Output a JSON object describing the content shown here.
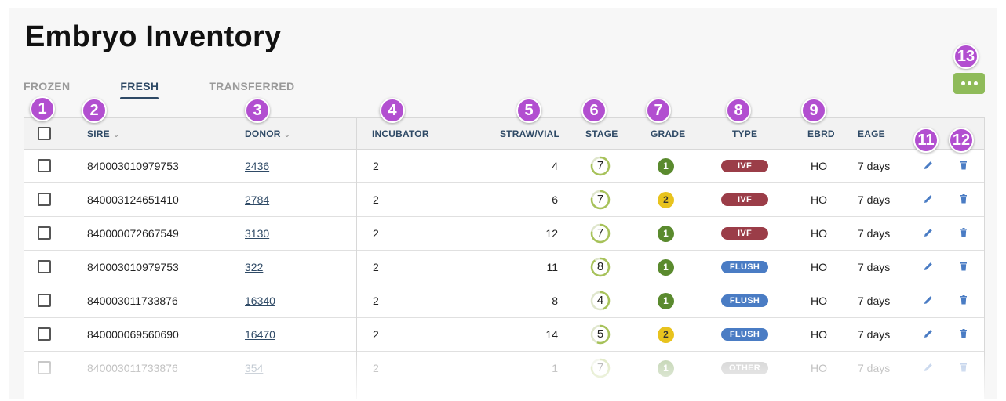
{
  "page": {
    "title": "Embryo Inventory"
  },
  "tabs": [
    {
      "label": "FROZEN",
      "active": false
    },
    {
      "label": "FRESH",
      "active": true
    },
    {
      "label": "TRANSFERRED",
      "active": false
    }
  ],
  "more_button": {
    "icon": "more-horizontal-icon",
    "color": "#8fbb5a"
  },
  "table": {
    "columns": {
      "select": "",
      "sire": "SIRE",
      "donor": "DONOR",
      "incubator": "INCUBATOR",
      "straw_vial": "STRAW/VIAL",
      "stage": "STAGE",
      "grade": "GRADE",
      "type": "TYPE",
      "ebrd": "EBRD",
      "eage": "EAGE"
    },
    "rows": [
      {
        "sire": "840003010979753",
        "donor": "2436",
        "incubator": "2",
        "straw_vial": "4",
        "stage": "7",
        "grade": "1",
        "type": "IVF",
        "ebrd": "HO",
        "eage": "7 days"
      },
      {
        "sire": "840003124651410",
        "donor": "2784",
        "incubator": "2",
        "straw_vial": "6",
        "stage": "7",
        "grade": "2",
        "type": "IVF",
        "ebrd": "HO",
        "eage": "7 days"
      },
      {
        "sire": "840000072667549",
        "donor": "3130",
        "incubator": "2",
        "straw_vial": "12",
        "stage": "7",
        "grade": "1",
        "type": "IVF",
        "ebrd": "HO",
        "eage": "7 days"
      },
      {
        "sire": "840003010979753",
        "donor": "322",
        "incubator": "2",
        "straw_vial": "11",
        "stage": "8",
        "grade": "1",
        "type": "FLUSH",
        "ebrd": "HO",
        "eage": "7 days"
      },
      {
        "sire": "840003011733876",
        "donor": "16340",
        "incubator": "2",
        "straw_vial": "8",
        "stage": "4",
        "grade": "1",
        "type": "FLUSH",
        "ebrd": "HO",
        "eage": "7 days"
      },
      {
        "sire": "840000069560690",
        "donor": "16470",
        "incubator": "2",
        "straw_vial": "14",
        "stage": "5",
        "grade": "2",
        "type": "FLUSH",
        "ebrd": "HO",
        "eage": "7 days"
      },
      {
        "sire": "840003011733876",
        "donor": "354",
        "incubator": "2",
        "straw_vial": "1",
        "stage": "7",
        "grade": "1",
        "type": "OTHER",
        "ebrd": "HO",
        "eage": "7 days"
      }
    ]
  },
  "colors": {
    "accent_navy": "#2f4a66",
    "grade_1": "#5a8a2e",
    "grade_2": "#e8c31e",
    "type_ivf": "#9b3d48",
    "type_flush": "#4a7cc4",
    "type_other": "#8a8a8a",
    "stage_ring": "#a7c25a",
    "annotation": "#b24fd0"
  },
  "icons": {
    "edit": "pencil-icon",
    "delete": "trash-icon",
    "sort": "chevron-down-icon"
  },
  "annotations": [
    "1",
    "2",
    "3",
    "4",
    "5",
    "6",
    "7",
    "8",
    "9",
    "11",
    "12",
    "13"
  ]
}
